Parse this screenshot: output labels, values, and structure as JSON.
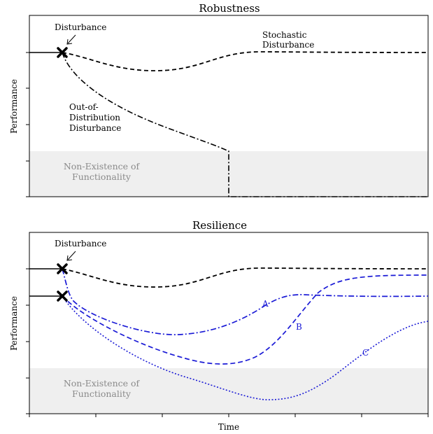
{
  "panels": [
    {
      "title": "Robustness",
      "ylabel": "Performance",
      "disturbance_label": "Disturbance",
      "region_label": [
        "Non-Existence of",
        "Functionality"
      ],
      "curve_labels": {
        "stochastic": [
          "Stochastic",
          "Disturbance"
        ],
        "ood": [
          "Out-of-",
          "Distribution",
          "Disturbance"
        ]
      }
    },
    {
      "title": "Resilience",
      "ylabel": "Performance",
      "xlabel": "Time",
      "disturbance_label": "Disturbance",
      "region_label": [
        "Non-Existence of",
        "Functionality"
      ],
      "curve_labels": {
        "a": "A",
        "b": "B",
        "c": "C"
      }
    }
  ],
  "colors": {
    "curve_black": "#000000",
    "curve_blue": "#1a1ad6",
    "region_fill": "#efefef",
    "region_text": "#8a8a8a"
  },
  "icons": {
    "disturbance_marker": "x-cross-icon",
    "pointer": "arrow-icon"
  }
}
